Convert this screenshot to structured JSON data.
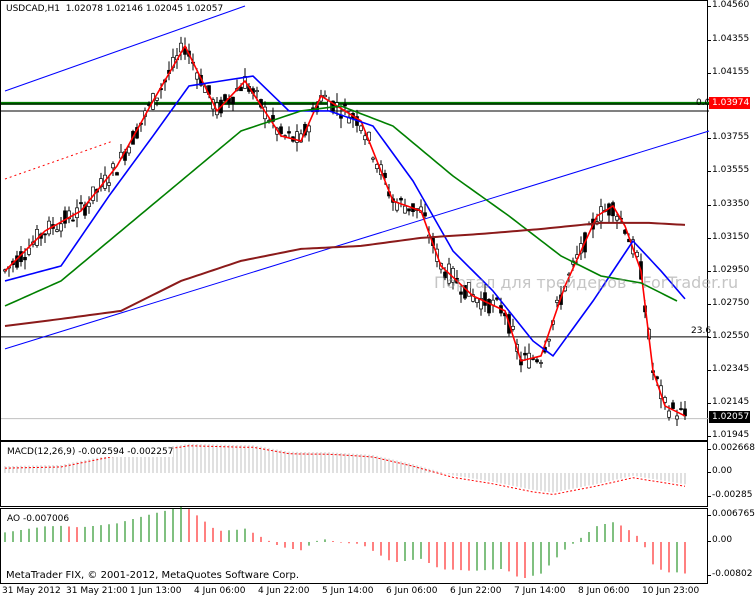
{
  "header": {
    "symbol": "USDCAD,H1",
    "open": "1.02078",
    "high": "1.02146",
    "low": "1.02045",
    "close": "1.02057"
  },
  "watermark": "Портал для трейдеров - ForTrader.ru",
  "copyright": "MetaTrader FIX, © 2001-2012, MetaQuotes Software Corp.",
  "price_axis": [
    "1.04560",
    "1.04355",
    "1.04155",
    "1.03755",
    "1.03555",
    "1.03350",
    "1.03150",
    "1.02950",
    "1.02750",
    "1.02550",
    "1.02345",
    "1.02145",
    "1.01945"
  ],
  "price_range": [
    1.01945,
    1.0456
  ],
  "tags": {
    "level": "1.03974",
    "current": "1.02057"
  },
  "fib": {
    "level0_label": "0.0",
    "level0": 1.0397,
    "level236_label": "23.6",
    "level236": 1.02554
  },
  "colors": {
    "fast_ma": "#ff0000",
    "mid_ma": "#0000ff",
    "slow_ma": "#008000",
    "long_ma": "#8b1a1a",
    "level_tag": "#ff0000"
  },
  "macd": {
    "label": "MACD(12,26,9) -0.002594 -0.002257",
    "axis": [
      "0.002668",
      "0.00",
      "-0.00285"
    ]
  },
  "ao": {
    "label": "AO -0.007006",
    "axis": [
      "0.006765",
      "0.00",
      "-0.00802"
    ]
  },
  "time_axis": [
    "31 May 2012",
    "31 May 21:00",
    "1 Jun 13:00",
    "4 Jun 06:00",
    "4 Jun 22:00",
    "5 Jun 14:00",
    "6 Jun 06:00",
    "6 Jun 22:00",
    "7 Jun 14:00",
    "8 Jun 06:00",
    "10 Jun 23:00"
  ],
  "chart_data": {
    "type": "line",
    "bars": 171,
    "series": [
      {
        "name": "fast_ma",
        "points": [
          [
            0,
            1.02955
          ],
          [
            10,
            1.03198
          ],
          [
            19,
            1.0332
          ],
          [
            28,
            1.03593
          ],
          [
            37,
            1.03988
          ],
          [
            45,
            1.04323
          ],
          [
            53,
            1.03928
          ],
          [
            60,
            1.0411
          ],
          [
            69,
            1.03776
          ],
          [
            74,
            1.03745
          ],
          [
            79,
            1.04019
          ],
          [
            89,
            1.03867
          ],
          [
            97,
            1.0338
          ],
          [
            104,
            1.0332
          ],
          [
            109,
            1.02985
          ],
          [
            117,
            1.02803
          ],
          [
            125,
            1.02712
          ],
          [
            129,
            1.02408
          ],
          [
            134,
            1.02438
          ],
          [
            140,
            1.02864
          ],
          [
            148,
            1.03289
          ],
          [
            152,
            1.0335
          ],
          [
            155,
            1.03228
          ],
          [
            159,
            1.02955
          ],
          [
            162,
            1.02347
          ],
          [
            165,
            1.02134
          ],
          [
            170,
            1.02073
          ]
        ]
      },
      {
        "name": "mid_ma",
        "points": [
          [
            0,
            1.02894
          ],
          [
            14,
            1.02985
          ],
          [
            26,
            1.03411
          ],
          [
            37,
            1.03776
          ],
          [
            46,
            1.0408
          ],
          [
            62,
            1.0414
          ],
          [
            71,
            1.03928
          ],
          [
            81,
            1.03928
          ],
          [
            92,
            1.03836
          ],
          [
            102,
            1.03502
          ],
          [
            112,
            1.03076
          ],
          [
            122,
            1.02833
          ],
          [
            132,
            1.02529
          ],
          [
            137,
            1.02438
          ],
          [
            147,
            1.02772
          ],
          [
            157,
            1.03137
          ],
          [
            164,
            1.02955
          ],
          [
            170,
            1.02785
          ]
        ]
      },
      {
        "name": "slow_ma",
        "points": [
          [
            0,
            1.02742
          ],
          [
            14,
            1.02894
          ],
          [
            29,
            1.03198
          ],
          [
            44,
            1.03502
          ],
          [
            59,
            1.03806
          ],
          [
            74,
            1.03928
          ],
          [
            84,
            1.03958
          ],
          [
            97,
            1.03836
          ],
          [
            112,
            1.03532
          ],
          [
            126,
            1.03289
          ],
          [
            139,
            1.03046
          ],
          [
            149,
            1.02924
          ],
          [
            159,
            1.02882
          ],
          [
            168,
            1.02772
          ]
        ]
      },
      {
        "name": "long_ma",
        "points": [
          [
            0,
            1.0262
          ],
          [
            14,
            1.02663
          ],
          [
            29,
            1.02712
          ],
          [
            44,
            1.02894
          ],
          [
            59,
            1.03016
          ],
          [
            74,
            1.03089
          ],
          [
            89,
            1.03107
          ],
          [
            104,
            1.03156
          ],
          [
            119,
            1.0318
          ],
          [
            134,
            1.0321
          ],
          [
            149,
            1.03247
          ],
          [
            161,
            1.03247
          ],
          [
            170,
            1.03235
          ]
        ]
      }
    ],
    "trendlines": [
      {
        "color": "#0000ff",
        "from": [
          0,
          1.04049
        ],
        "to": [
          60,
          1.04566
        ]
      },
      {
        "color": "#0000ff",
        "from": [
          0,
          1.02481
        ],
        "to": [
          176,
          1.03806
        ]
      },
      {
        "color": "#ff0000",
        "dash": true,
        "from": [
          0,
          1.03514
        ],
        "to": [
          27,
          1.03745
        ]
      }
    ],
    "horizontal": [
      {
        "price": 1.03974,
        "color": "#008000",
        "thick": true
      },
      {
        "price": 1.02057,
        "color": "#c0c0c0"
      }
    ]
  }
}
